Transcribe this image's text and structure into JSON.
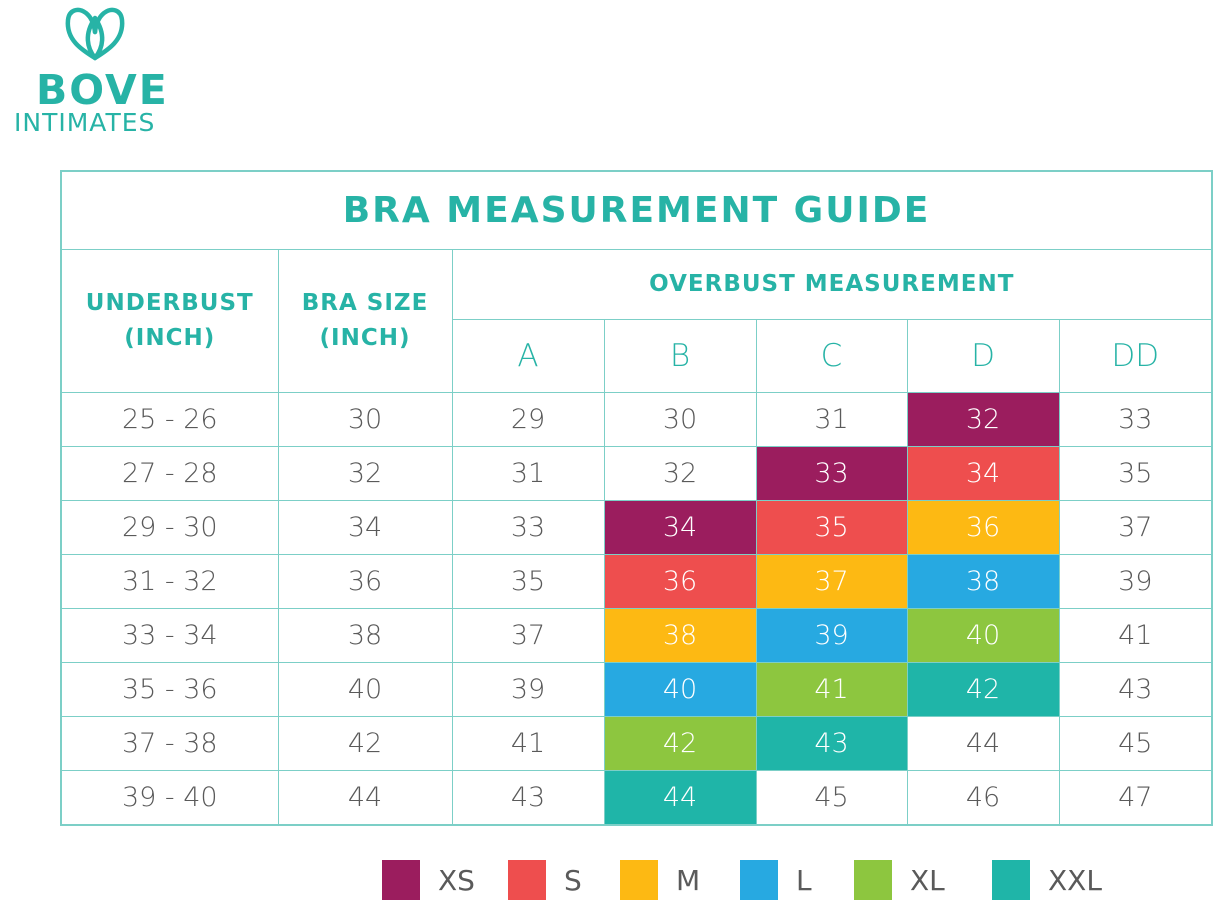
{
  "brand": {
    "line1": "BOVE",
    "line2": "INTIMATES",
    "color": "#27B3A6",
    "logo_icon": "lotus-icon"
  },
  "chart_data": {
    "type": "table",
    "title": "BRA MEASUREMENT GUIDE",
    "columns": {
      "underbust": "UNDERBUST (INCH)",
      "bra_size": "BRA SIZE (INCH)",
      "overbust_group": "OVERBUST MEASUREMENT",
      "cups": [
        "A",
        "B",
        "C",
        "D",
        "DD"
      ]
    },
    "rows": [
      {
        "underbust": "25 - 26",
        "bra_size": "30",
        "values": [
          "29",
          "30",
          "31",
          "32",
          "33"
        ],
        "sizes": [
          null,
          null,
          null,
          "XS",
          null
        ]
      },
      {
        "underbust": "27 - 28",
        "bra_size": "32",
        "values": [
          "31",
          "32",
          "33",
          "34",
          "35"
        ],
        "sizes": [
          null,
          null,
          "XS",
          "S",
          null
        ]
      },
      {
        "underbust": "29 - 30",
        "bra_size": "34",
        "values": [
          "33",
          "34",
          "35",
          "36",
          "37"
        ],
        "sizes": [
          null,
          "XS",
          "S",
          "M",
          null
        ]
      },
      {
        "underbust": "31 - 32",
        "bra_size": "36",
        "values": [
          "35",
          "36",
          "37",
          "38",
          "39"
        ],
        "sizes": [
          null,
          "S",
          "M",
          "L",
          null
        ]
      },
      {
        "underbust": "33 - 34",
        "bra_size": "38",
        "values": [
          "37",
          "38",
          "39",
          "40",
          "41"
        ],
        "sizes": [
          null,
          "M",
          "L",
          "XL",
          null
        ]
      },
      {
        "underbust": "35 - 36",
        "bra_size": "40",
        "values": [
          "39",
          "40",
          "41",
          "42",
          "43"
        ],
        "sizes": [
          null,
          "L",
          "XL",
          "XXL",
          null
        ]
      },
      {
        "underbust": "37 - 38",
        "bra_size": "42",
        "values": [
          "41",
          "42",
          "43",
          "44",
          "45"
        ],
        "sizes": [
          null,
          "XL",
          "XXL",
          null,
          null
        ]
      },
      {
        "underbust": "39 - 40",
        "bra_size": "44",
        "values": [
          "43",
          "44",
          "45",
          "46",
          "47"
        ],
        "sizes": [
          null,
          "XXL",
          null,
          null,
          null
        ]
      }
    ],
    "legend": [
      {
        "label": "XS",
        "color": "#9B1D5E"
      },
      {
        "label": "S",
        "color": "#EE4E4E"
      },
      {
        "label": "M",
        "color": "#FDB913"
      },
      {
        "label": "L",
        "color": "#27A9E1"
      },
      {
        "label": "XL",
        "color": "#8DC63F"
      },
      {
        "label": "XXL",
        "color": "#1FB5A8"
      }
    ]
  }
}
